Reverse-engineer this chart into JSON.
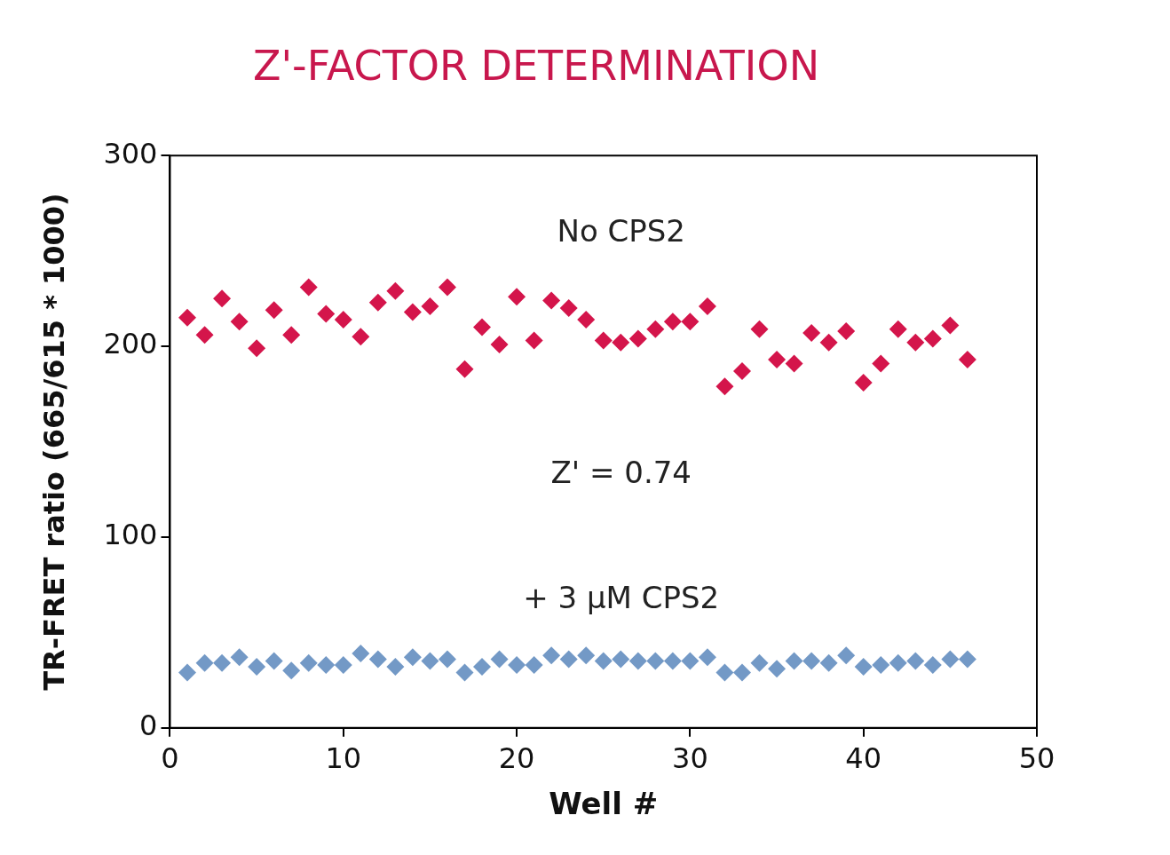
{
  "chart_data": {
    "type": "scatter",
    "title": "Z'-FACTOR DETERMINATION",
    "xlabel": "Well #",
    "ylabel": "TR-FRET ratio (665/615 * 1000)",
    "xlim": [
      0,
      50
    ],
    "xticks": [
      0,
      10,
      20,
      30,
      40,
      50
    ],
    "ylim": [
      0,
      300
    ],
    "yticks": [
      0,
      100,
      200,
      300
    ],
    "grid": false,
    "legend": false,
    "marker": "diamond",
    "annotations": [
      "Z' = 0.74"
    ],
    "series": [
      {
        "name": "No CPS2",
        "color": "#d4154b",
        "x": [
          1,
          2,
          3,
          4,
          5,
          6,
          7,
          8,
          9,
          10,
          11,
          12,
          13,
          14,
          15,
          16,
          17,
          18,
          19,
          20,
          21,
          22,
          23,
          24,
          25,
          26,
          27,
          28,
          29,
          30,
          31,
          32,
          33,
          34,
          35,
          36,
          37,
          38,
          39,
          40,
          41,
          42,
          43,
          44,
          45,
          46
        ],
        "values": [
          215,
          206,
          225,
          213,
          199,
          219,
          206,
          231,
          217,
          214,
          205,
          223,
          229,
          218,
          221,
          231,
          188,
          210,
          201,
          226,
          203,
          224,
          220,
          214,
          203,
          202,
          204,
          209,
          213,
          213,
          221,
          179,
          187,
          209,
          193,
          191,
          207,
          202,
          208,
          181,
          191,
          209,
          202,
          204,
          211,
          193
        ]
      },
      {
        "name": "+ 3 µM CPS2",
        "color": "#7399c6",
        "x": [
          1,
          2,
          3,
          4,
          5,
          6,
          7,
          8,
          9,
          10,
          11,
          12,
          13,
          14,
          15,
          16,
          17,
          18,
          19,
          20,
          21,
          22,
          23,
          24,
          25,
          26,
          27,
          28,
          29,
          30,
          31,
          32,
          33,
          34,
          35,
          36,
          37,
          38,
          39,
          40,
          41,
          42,
          43,
          44,
          45,
          46
        ],
        "values": [
          29,
          34,
          34,
          37,
          32,
          35,
          30,
          34,
          33,
          33,
          39,
          36,
          32,
          37,
          35,
          36,
          29,
          32,
          36,
          33,
          33,
          38,
          36,
          38,
          35,
          36,
          35,
          35,
          35,
          35,
          37,
          29,
          29,
          34,
          31,
          35,
          35,
          34,
          38,
          32,
          33,
          34,
          35,
          33,
          36,
          36
        ]
      }
    ]
  }
}
